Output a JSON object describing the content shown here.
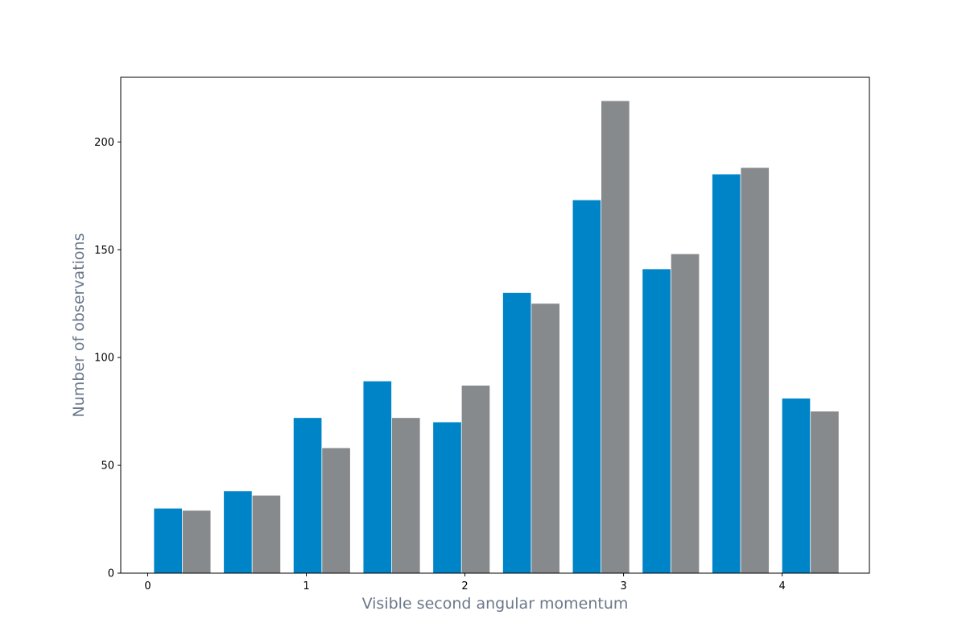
{
  "chart_data": {
    "type": "bar",
    "xlabel": "Visible second angular momentum",
    "ylabel": "Number of observations",
    "label_color": "#6b778a",
    "xlim": [
      -0.17,
      4.55
    ],
    "ylim": [
      0,
      230
    ],
    "x_ticks": [
      0,
      1,
      2,
      3,
      4
    ],
    "y_ticks": [
      0,
      50,
      100,
      150,
      200
    ],
    "bin_width": 0.44,
    "series": [
      {
        "color": "#0084c8",
        "x": [
          0.04,
          0.48,
          0.92,
          1.36,
          1.8,
          2.24,
          2.68,
          3.12,
          3.56,
          4.0
        ],
        "values": [
          30,
          38,
          72,
          89,
          70,
          130,
          173,
          141,
          185,
          81
        ]
      },
      {
        "color": "#878a8d",
        "x": [
          0.22,
          0.66,
          1.1,
          1.54,
          1.98,
          2.42,
          2.86,
          3.3,
          3.74,
          4.18
        ],
        "values": [
          29,
          36,
          58,
          72,
          87,
          125,
          219,
          148,
          188,
          75
        ]
      }
    ],
    "bar_width": 0.176,
    "grid": false,
    "legend": "none"
  }
}
